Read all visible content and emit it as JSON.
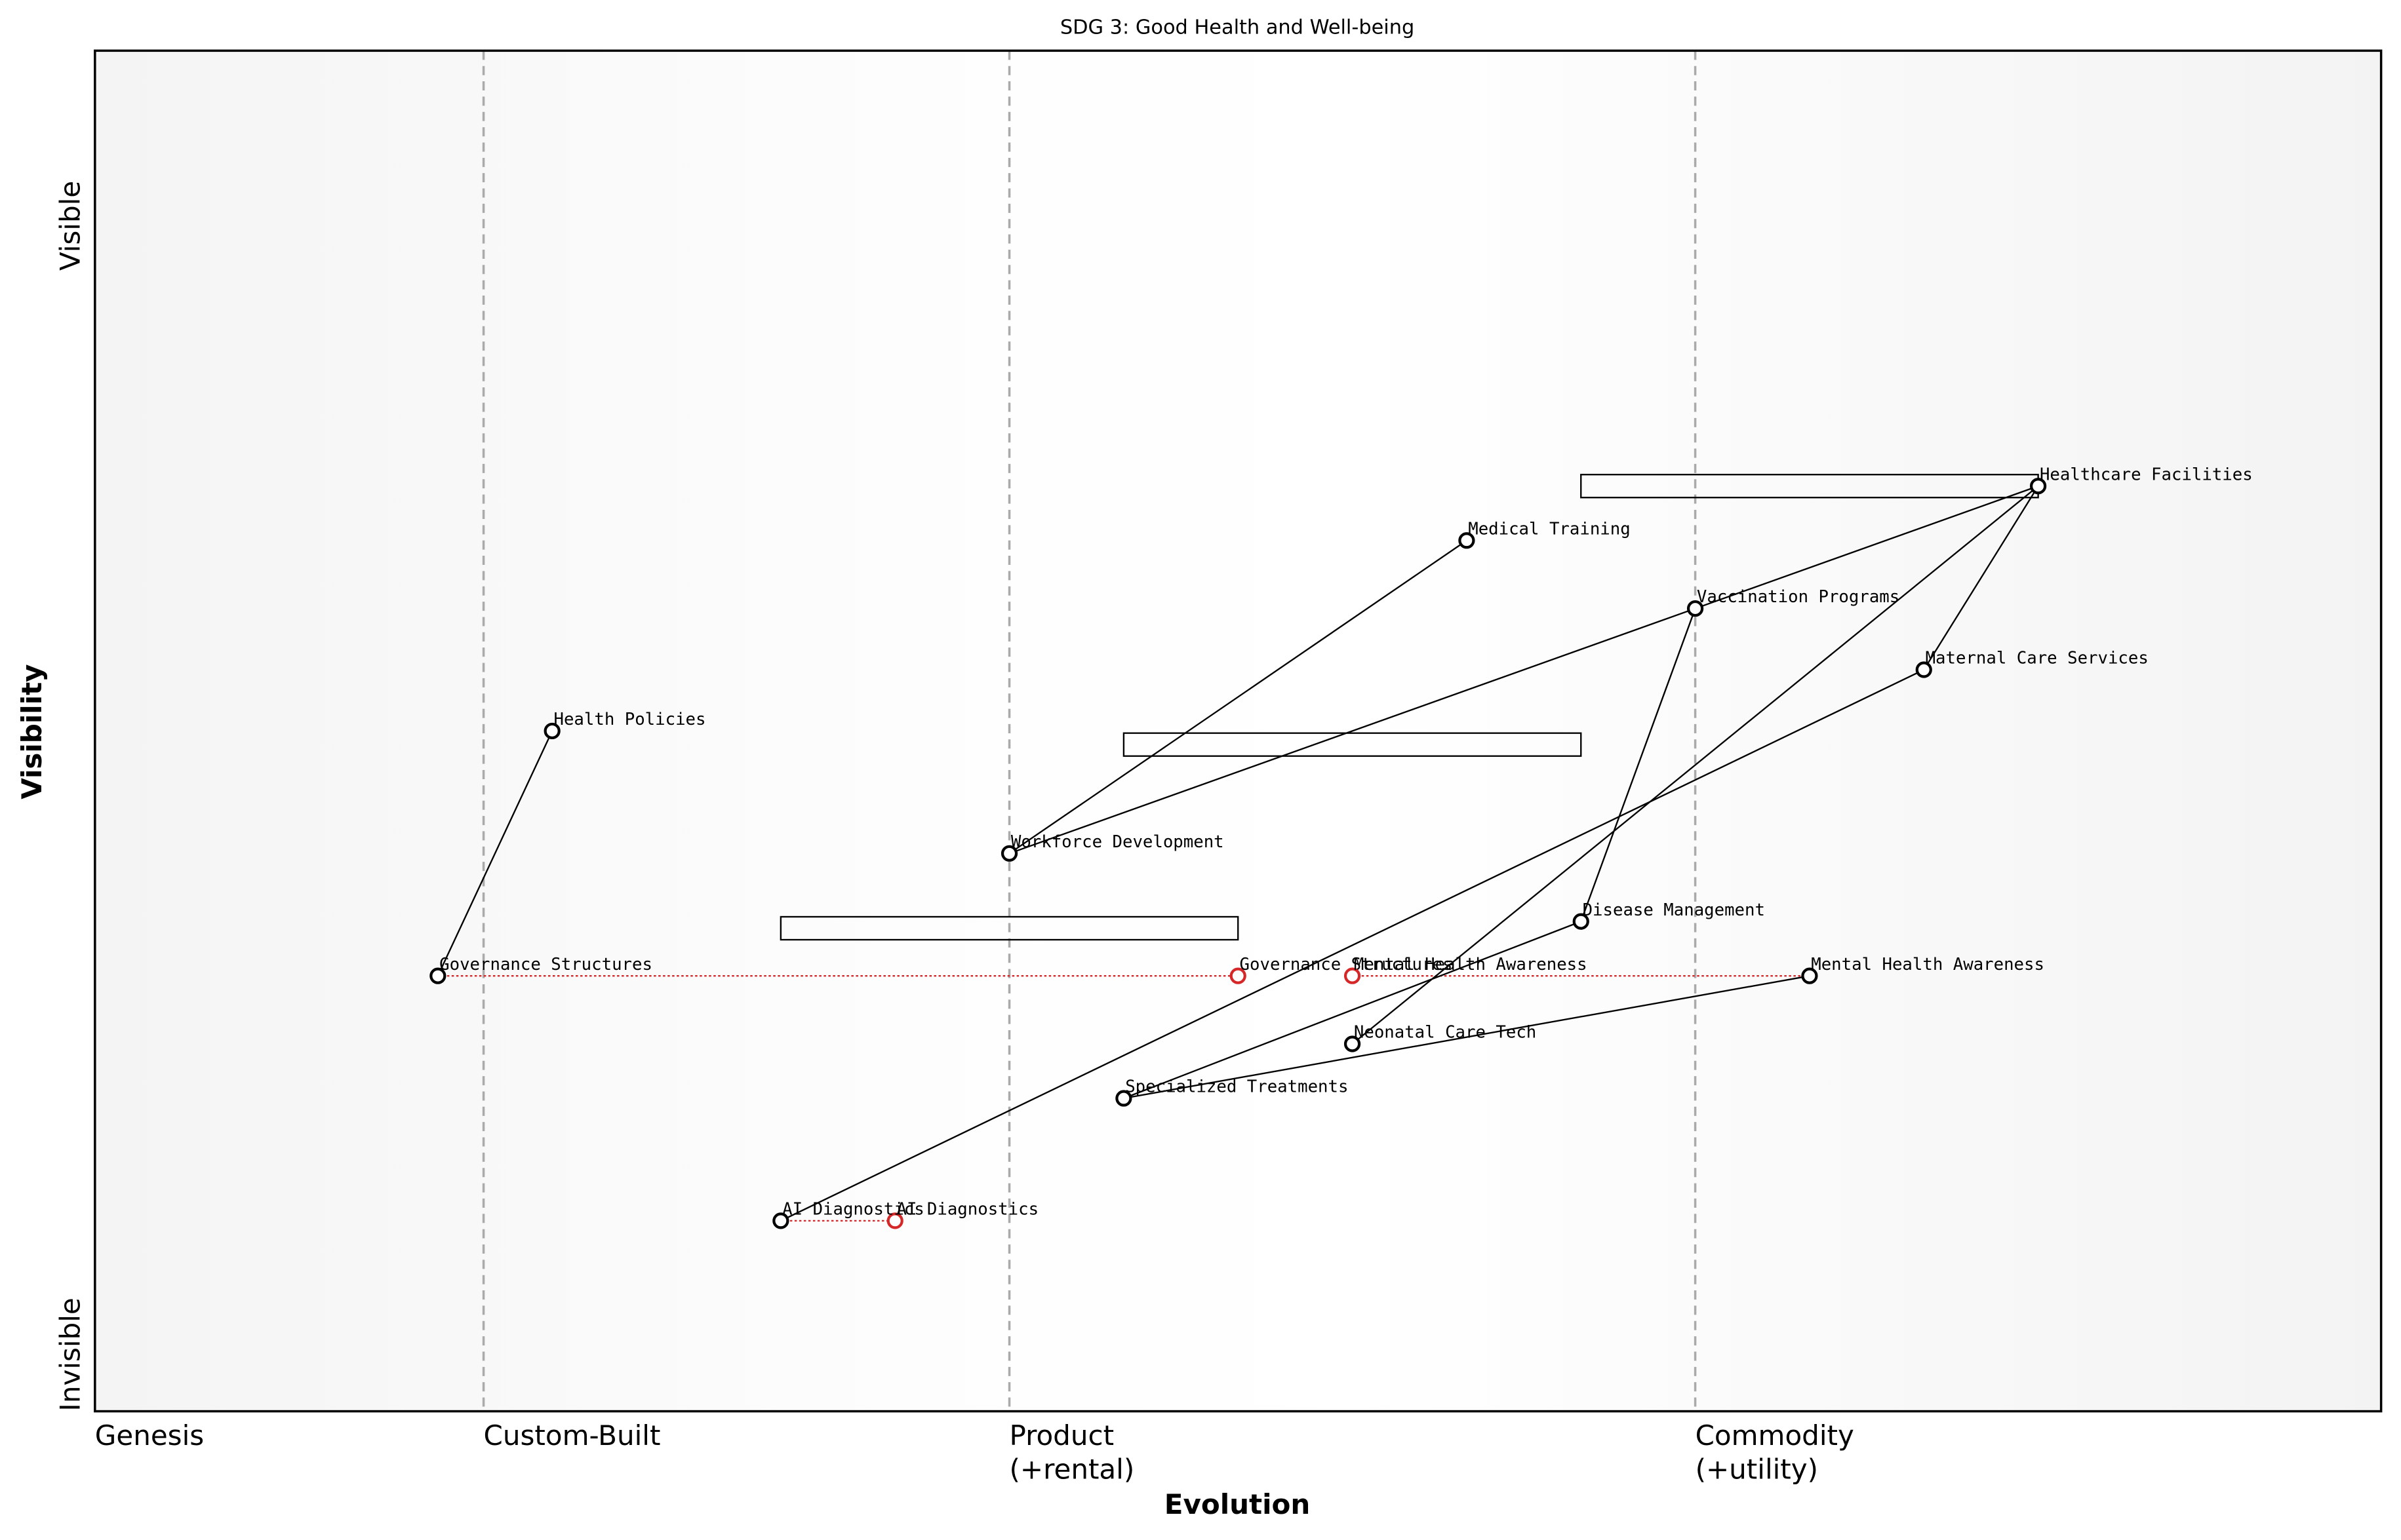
{
  "chart_data": {
    "type": "wardley",
    "title": "SDG 3: Good Health and Well-being",
    "x_label": "Evolution",
    "y_label": "Visibility",
    "xlim": [
      0,
      1
    ],
    "ylim": [
      0,
      1
    ],
    "xticks": [
      {
        "value": 0,
        "label": [
          "Genesis"
        ]
      },
      {
        "value": 0.17,
        "label": [
          "Custom-Built"
        ]
      },
      {
        "value": 0.4,
        "label": [
          "Product",
          "(+rental)"
        ]
      },
      {
        "value": 0.7,
        "label": [
          "Commodity",
          "(+utility)"
        ]
      }
    ],
    "yticks": [
      {
        "value": 1,
        "label": "Visible"
      },
      {
        "value": 0,
        "label": "Invisible"
      }
    ],
    "grid": true,
    "nodes": [
      {
        "name": "Healthcare Facilities",
        "x": 0.85,
        "y": 0.68
      },
      {
        "name": "Medical Training",
        "x": 0.6,
        "y": 0.64
      },
      {
        "name": "Vaccination Programs",
        "x": 0.7,
        "y": 0.59
      },
      {
        "name": "Maternal Care Services",
        "x": 0.8,
        "y": 0.545
      },
      {
        "name": "Health Policies",
        "x": 0.2,
        "y": 0.5
      },
      {
        "name": "Workforce Development",
        "x": 0.4,
        "y": 0.41
      },
      {
        "name": "Disease Management",
        "x": 0.65,
        "y": 0.36
      },
      {
        "name": "Governance Structures",
        "x": 0.15,
        "y": 0.32
      },
      {
        "name": "Mental Health Awareness",
        "x": 0.75,
        "y": 0.32
      },
      {
        "name": "Neonatal Care Tech",
        "x": 0.55,
        "y": 0.27
      },
      {
        "name": "Specialized Treatments",
        "x": 0.45,
        "y": 0.23
      },
      {
        "name": "AI Diagnostics",
        "x": 0.3,
        "y": 0.14
      }
    ],
    "links": [
      [
        4,
        7
      ],
      [
        1,
        5
      ],
      [
        2,
        5
      ],
      [
        0,
        2
      ],
      [
        0,
        3
      ],
      [
        0,
        9
      ],
      [
        6,
        2
      ],
      [
        6,
        10
      ],
      [
        3,
        11
      ],
      [
        8,
        10
      ]
    ],
    "evolve": [
      {
        "name": "Governance Structures",
        "from": 7,
        "x": 0.5
      },
      {
        "name": "Mental Health Awareness",
        "from": 8,
        "x": 0.55
      },
      {
        "name": "AI Diagnostics",
        "from": 11,
        "x": 0.35
      }
    ],
    "pipelines": [
      {
        "y": 0.68,
        "x": [
          0.65,
          0.85
        ]
      },
      {
        "y": 0.49,
        "x": [
          0.45,
          0.65
        ]
      },
      {
        "y": 0.355,
        "x": [
          0.3,
          0.5
        ]
      }
    ],
    "evolve_color": "#d62728",
    "color": "#000000"
  }
}
